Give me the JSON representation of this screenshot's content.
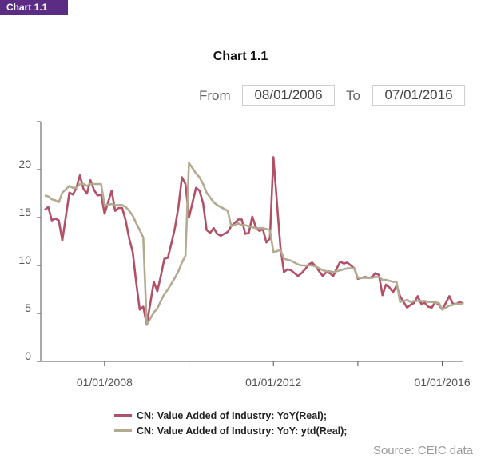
{
  "header": {
    "tag": "Chart 1.1"
  },
  "title": "Chart 1.1",
  "range": {
    "from_label": "From",
    "from_value": "08/01/2006",
    "to_label": "To",
    "to_value": "07/01/2016"
  },
  "source": "Source: CEIC data",
  "colors": {
    "yoy": "#b25068",
    "ytd": "#b3ab91",
    "axis": "#555555",
    "tag": "#5b2c83"
  },
  "chart_data": {
    "type": "line",
    "title": "Chart 1.1",
    "x_start": "2006-08",
    "x_end": "2016-07",
    "xticks": [
      "01/01/2008",
      "01/01/2012",
      "01/01/2016"
    ],
    "ylim": [
      0,
      25
    ],
    "yticks": [
      "0",
      "5",
      "10",
      "15",
      "20"
    ],
    "grid": false,
    "legend_position": "bottom",
    "series": [
      {
        "name": "CN: Value Added of Industry: YoY(Real);",
        "color": "#b25068",
        "x": [
          "2006-08",
          "2006-09",
          "2006-10",
          "2006-11",
          "2006-12",
          "2007-01",
          "2007-03",
          "2007-04",
          "2007-05",
          "2007-06",
          "2007-07",
          "2007-08",
          "2007-09",
          "2007-10",
          "2007-11",
          "2007-12",
          "2008-01",
          "2008-03",
          "2008-04",
          "2008-05",
          "2008-06",
          "2008-07",
          "2008-08",
          "2008-09",
          "2008-10",
          "2008-11",
          "2008-12",
          "2009-01",
          "2009-03",
          "2009-04",
          "2009-05",
          "2009-06",
          "2009-07",
          "2009-08",
          "2009-09",
          "2009-10",
          "2009-11",
          "2009-12",
          "2010-01",
          "2010-03",
          "2010-04",
          "2010-05",
          "2010-06",
          "2010-07",
          "2010-08",
          "2010-09",
          "2010-10",
          "2010-11",
          "2010-12",
          "2011-01",
          "2011-03",
          "2011-04",
          "2011-05",
          "2011-06",
          "2011-07",
          "2011-08",
          "2011-09",
          "2011-10",
          "2011-11",
          "2011-12",
          "2012-01",
          "2012-03",
          "2012-04",
          "2012-05",
          "2012-06",
          "2012-07",
          "2012-08",
          "2012-09",
          "2012-10",
          "2012-11",
          "2012-12",
          "2013-01",
          "2013-03",
          "2013-04",
          "2013-05",
          "2013-06",
          "2013-07",
          "2013-08",
          "2013-09",
          "2013-10",
          "2013-11",
          "2013-12",
          "2014-01",
          "2014-03",
          "2014-04",
          "2014-05",
          "2014-06",
          "2014-07",
          "2014-08",
          "2014-09",
          "2014-10",
          "2014-11",
          "2014-12",
          "2015-01",
          "2015-03",
          "2015-04",
          "2015-05",
          "2015-06",
          "2015-07",
          "2015-08",
          "2015-09",
          "2015-10",
          "2015-11",
          "2015-12",
          "2016-01",
          "2016-03",
          "2016-04",
          "2016-05",
          "2016-06",
          "2016-07"
        ],
        "values": [
          15.8,
          16.1,
          14.7,
          14.9,
          14.7,
          12.6,
          17.6,
          17.4,
          18.1,
          19.4,
          18.0,
          17.5,
          18.9,
          17.9,
          17.3,
          17.4,
          15.4,
          17.8,
          15.7,
          16.0,
          16.0,
          14.7,
          12.8,
          11.4,
          8.2,
          5.4,
          5.7,
          3.8,
          8.3,
          7.3,
          8.9,
          10.7,
          10.8,
          12.3,
          13.9,
          16.1,
          19.2,
          18.5,
          15.0,
          18.1,
          17.8,
          16.5,
          13.7,
          13.4,
          13.9,
          13.3,
          13.1,
          13.3,
          13.5,
          14.1,
          14.8,
          14.8,
          13.3,
          13.4,
          15.1,
          14.0,
          13.6,
          13.8,
          12.4,
          12.8,
          21.3,
          11.9,
          9.3,
          9.6,
          9.5,
          9.2,
          8.9,
          9.2,
          9.6,
          10.1,
          10.3,
          9.9,
          8.9,
          9.3,
          9.2,
          8.9,
          9.7,
          10.4,
          10.2,
          10.3,
          10.0,
          9.7,
          8.6,
          8.8,
          8.7,
          8.8,
          9.2,
          9.0,
          6.9,
          8.0,
          7.7,
          7.2,
          7.9,
          6.8,
          5.6,
          5.9,
          6.1,
          6.8,
          6.0,
          6.1,
          5.7,
          5.6,
          6.2,
          5.9,
          5.4,
          6.8,
          6.0,
          6.0,
          6.2,
          6.0
        ],
        "values_note": "monthly readings (Feb omitted for early years as combined readings)"
      },
      {
        "name": "CN: Value Added of Industry: YoY: ytd(Real);",
        "color": "#b3ab91",
        "x": [
          "2006-08",
          "2006-09",
          "2006-10",
          "2006-11",
          "2006-12",
          "2007-01",
          "2007-03",
          "2007-04",
          "2007-05",
          "2007-06",
          "2007-07",
          "2007-08",
          "2007-09",
          "2007-10",
          "2007-11",
          "2007-12",
          "2008-01",
          "2008-03",
          "2008-04",
          "2008-05",
          "2008-06",
          "2008-07",
          "2008-08",
          "2008-09",
          "2008-10",
          "2008-11",
          "2008-12",
          "2009-01",
          "2009-03",
          "2009-04",
          "2009-05",
          "2009-06",
          "2009-07",
          "2009-08",
          "2009-09",
          "2009-10",
          "2009-11",
          "2009-12",
          "2010-01",
          "2010-03",
          "2010-04",
          "2010-05",
          "2010-06",
          "2010-07",
          "2010-08",
          "2010-09",
          "2010-10",
          "2010-11",
          "2010-12",
          "2011-01",
          "2011-03",
          "2011-04",
          "2011-05",
          "2011-06",
          "2011-07",
          "2011-08",
          "2011-09",
          "2011-10",
          "2011-11",
          "2011-12",
          "2012-01",
          "2012-03",
          "2012-04",
          "2012-05",
          "2012-06",
          "2012-07",
          "2012-08",
          "2012-09",
          "2012-10",
          "2012-11",
          "2012-12",
          "2013-01",
          "2013-03",
          "2013-04",
          "2013-05",
          "2013-06",
          "2013-07",
          "2013-08",
          "2013-09",
          "2013-10",
          "2013-11",
          "2013-12",
          "2014-01",
          "2014-03",
          "2014-04",
          "2014-05",
          "2014-06",
          "2014-07",
          "2014-08",
          "2014-09",
          "2014-10",
          "2014-11",
          "2014-12",
          "2015-01",
          "2015-03",
          "2015-04",
          "2015-05",
          "2015-06",
          "2015-07",
          "2015-08",
          "2015-09",
          "2015-10",
          "2015-11",
          "2015-12",
          "2016-01",
          "2016-03",
          "2016-04",
          "2016-05",
          "2016-06",
          "2016-07"
        ],
        "values": [
          17.3,
          17.2,
          16.9,
          16.8,
          16.6,
          17.6,
          18.3,
          18.1,
          18.1,
          18.5,
          18.5,
          18.3,
          18.5,
          18.5,
          18.5,
          18.5,
          16.3,
          16.4,
          16.3,
          16.3,
          16.3,
          16.1,
          15.7,
          15.2,
          14.4,
          13.7,
          12.9,
          3.8,
          5.1,
          5.5,
          6.3,
          7.0,
          7.5,
          8.1,
          8.7,
          9.4,
          10.3,
          11.0,
          20.7,
          19.6,
          19.2,
          18.5,
          17.6,
          17.1,
          16.6,
          16.3,
          16.1,
          15.9,
          15.7,
          14.1,
          14.4,
          14.2,
          14.2,
          14.1,
          14.0,
          13.9,
          13.9,
          13.9,
          13.8,
          13.7,
          11.4,
          11.6,
          10.7,
          10.6,
          10.5,
          10.3,
          10.1,
          10.0,
          10.0,
          10.0,
          10.0,
          9.9,
          9.5,
          9.4,
          9.4,
          9.3,
          9.4,
          9.5,
          9.6,
          9.7,
          9.7,
          9.7,
          8.7,
          8.7,
          8.7,
          8.7,
          8.8,
          8.8,
          8.5,
          8.5,
          8.4,
          8.3,
          8.3,
          6.2,
          6.4,
          6.2,
          6.3,
          6.3,
          6.3,
          6.3,
          6.2,
          6.2,
          6.1,
          6.1,
          5.4,
          5.8,
          5.9,
          6.0,
          6.0,
          6.0
        ]
      }
    ]
  }
}
